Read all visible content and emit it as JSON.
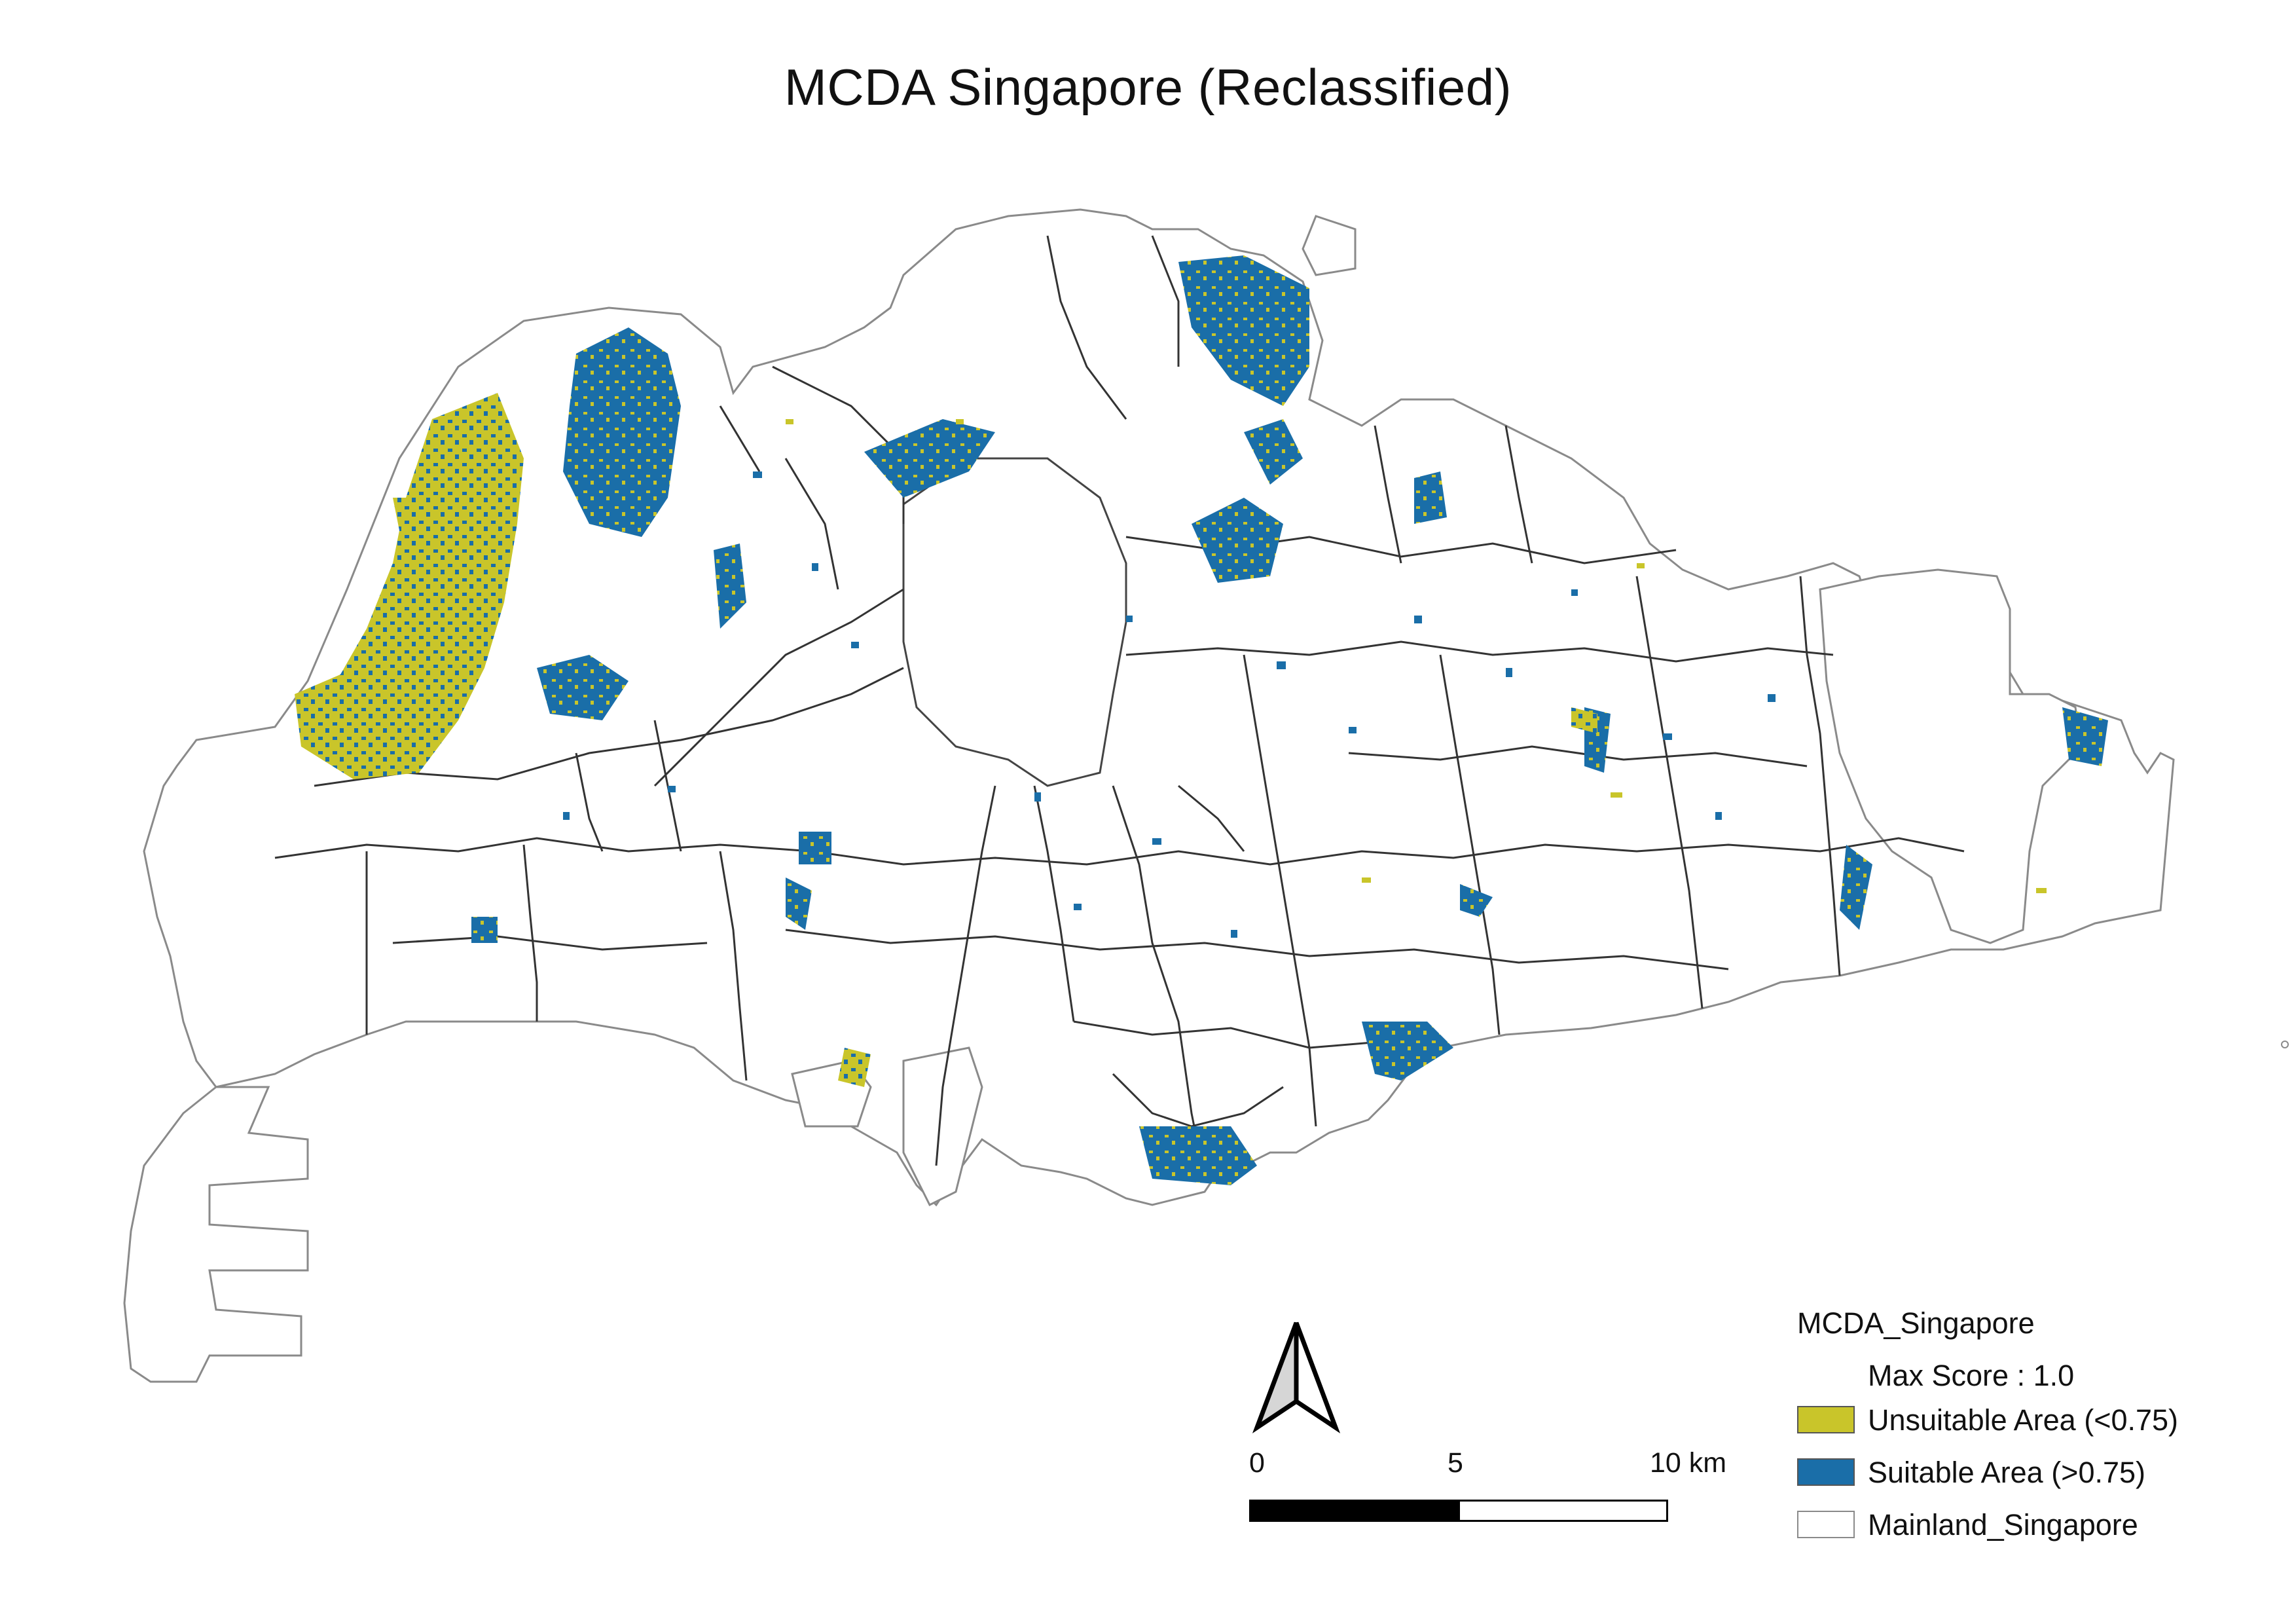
{
  "title": "MCDA Singapore (Reclassified)",
  "legend": {
    "layer_title": "MCDA_Singapore",
    "subtitle": "Max Score : 1.0",
    "items": [
      {
        "label": "Unsuitable Area (<0.75)",
        "color": "#c9c52a"
      },
      {
        "label": "Suitable Area (>0.75)",
        "color": "#1a6ea8"
      },
      {
        "label": "Mainland_Singapore",
        "color": "#ffffff"
      }
    ]
  },
  "scalebar": {
    "ticks": [
      "0",
      "5",
      "10 km"
    ]
  },
  "colors": {
    "unsuitable": "#c9c52a",
    "suitable": "#1a6ea8",
    "boundary": "#333333",
    "outline": "#8a8a8a"
  },
  "icons": {
    "north_arrow": "north-arrow-icon"
  }
}
